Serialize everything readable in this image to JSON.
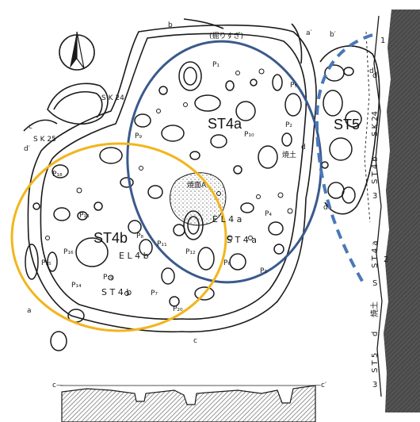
{
  "overlay_labels": {
    "st4a": "ST4a",
    "st4b": "ST4b",
    "st5": "ST5"
  },
  "plan_labels": {
    "overdig": "(掘りすぎ)",
    "sk24": "S K 24",
    "sk25": "S K 25",
    "burn_surface": "焼面A",
    "burnt_soil": "焼土",
    "el4a": "E L 4 a",
    "el4b": "E L 4 b",
    "st4a_plan": "S T 4 a",
    "st4b_plan": "S T 4 b",
    "p1": "P₁",
    "p2": "P₂",
    "p3": "P₃",
    "p4": "P₄",
    "p5": "P₅",
    "p6": "P₆",
    "p7": "P₇",
    "p8": "P₈",
    "p9": "P₉",
    "p10": "P₁₀",
    "p11": "P₁₁",
    "p12": "P₁₂",
    "p13": "P₁₃",
    "p14": "P₁₄",
    "p15": "P₁₅",
    "p16": "P₁₆",
    "p17": "P₁₇",
    "p18": "P₁₈",
    "p19": "P₁₉",
    "p20": "P₂₀",
    "b": "b",
    "b_prime": "b′",
    "a_prime": "a′",
    "a": "a",
    "c": "c",
    "c_dash": "c—",
    "c_prime_right": "—c′",
    "c_prime": "c′",
    "d_prime": "d′",
    "d": "d",
    "d_small": "d"
  },
  "section_labels": {
    "top": "S K 24",
    "mid": "S T 4 b",
    "mid2": "S T 4 a",
    "low": "S T 5",
    "d": "d",
    "d2": "d",
    "burnt": "焼土",
    "s": "S",
    "n3": "3",
    "n2": "2",
    "n1": "1"
  },
  "colors": {
    "ink": "#1a1a1a",
    "st4a_ellipse": "#3a5a8c",
    "st4b_ellipse": "#f2b51c",
    "st5_dashed": "#4a78b8",
    "section_hatch": "#555555"
  }
}
